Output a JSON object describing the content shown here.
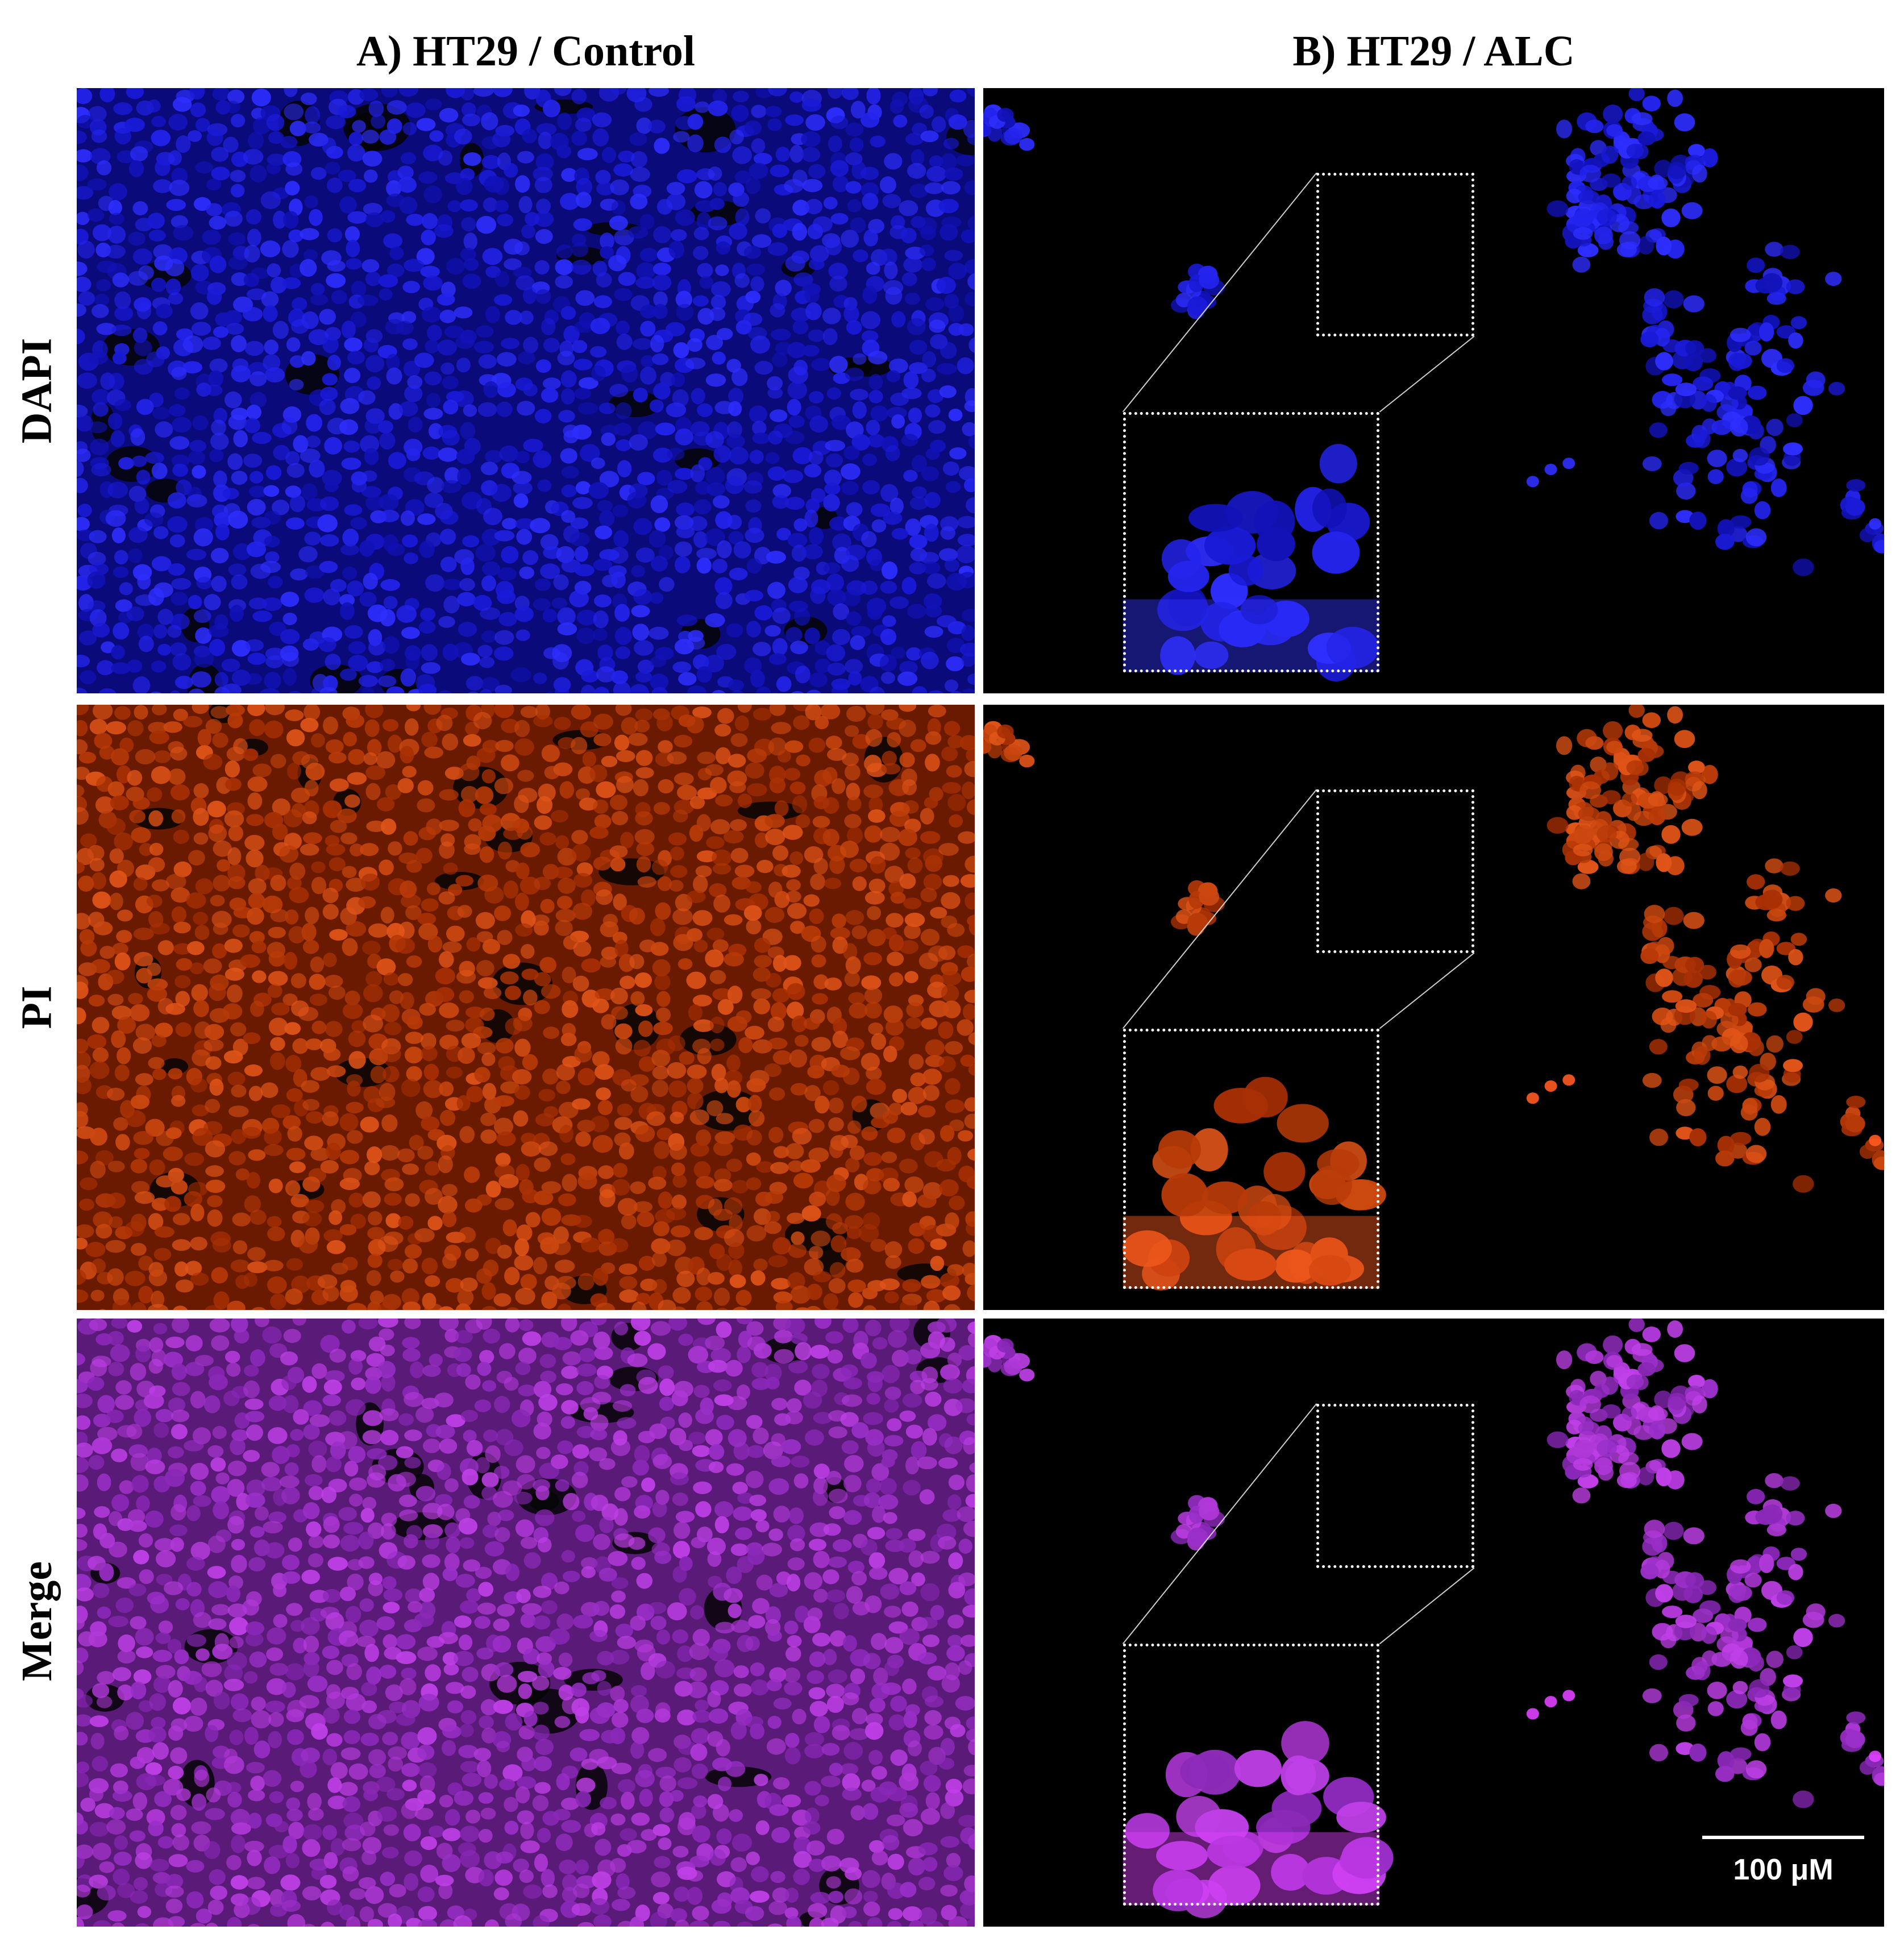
{
  "columns": [
    {
      "title": "A) HT29 / Control"
    },
    {
      "title": "B) HT29 / ALC"
    }
  ],
  "rows": [
    {
      "label": "DAPI",
      "stain_color": "#2020ff"
    },
    {
      "label": "PI",
      "stain_color": "#e04010"
    },
    {
      "label": "Merge",
      "stain_color": "#c030e0"
    }
  ],
  "scale_bar": {
    "label": "100 μM"
  },
  "background_color": "#000000"
}
